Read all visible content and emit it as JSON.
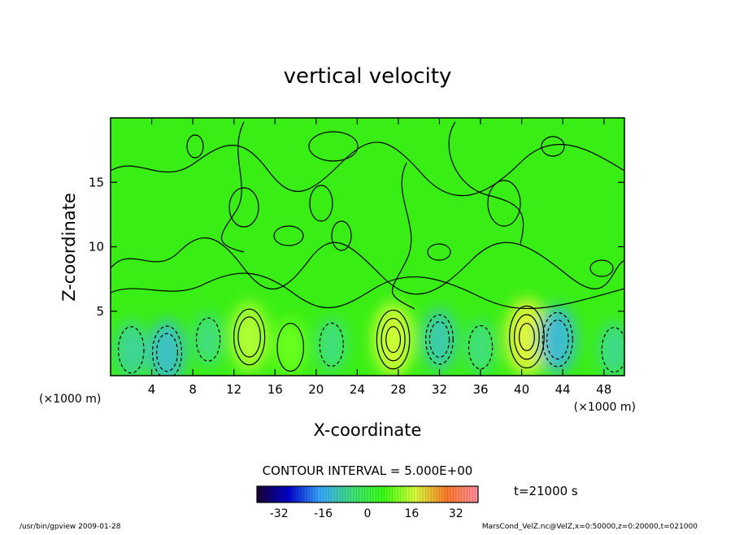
{
  "chart_data": {
    "type": "heatmap",
    "title": "vertical velocity",
    "xlabel": "X-coordinate",
    "ylabel": "Z-coordinate",
    "x_unit": "(×1000 m)",
    "y_unit": "(×1000 m)",
    "xlim": [
      0,
      50
    ],
    "ylim": [
      0,
      20
    ],
    "x_ticks": [
      4,
      8,
      12,
      16,
      20,
      24,
      28,
      32,
      36,
      40,
      44,
      48
    ],
    "y_ticks": [
      5,
      10,
      15
    ],
    "contour_interval_text": "CONTOUR INTERVAL = 5.000E+00",
    "time_text": "t=21000 s",
    "colorbar": {
      "range": [
        -40,
        40
      ],
      "ticks": [
        -32,
        -16,
        0,
        16,
        32
      ],
      "colors": [
        "#1a0033",
        "#0000cc",
        "#3aa8ff",
        "#3fe07a",
        "#39ff14",
        "#d8ff3a",
        "#ff7a2a",
        "#ff8fa0"
      ]
    },
    "field": {
      "background_color": "#39ee14",
      "features": [
        {
          "x": 2,
          "z": 2.0,
          "w": -8
        },
        {
          "x": 5.5,
          "z": 1.8,
          "w": -12
        },
        {
          "x": 9.5,
          "z": 2.8,
          "w": -6
        },
        {
          "x": 13.5,
          "z": 3.0,
          "w": 14
        },
        {
          "x": 17.5,
          "z": 2.2,
          "w": 9
        },
        {
          "x": 21.5,
          "z": 2.4,
          "w": -6
        },
        {
          "x": 27.5,
          "z": 2.8,
          "w": 16
        },
        {
          "x": 32.0,
          "z": 2.8,
          "w": -10
        },
        {
          "x": 36.0,
          "z": 2.2,
          "w": -6
        },
        {
          "x": 40.5,
          "z": 3.0,
          "w": 18
        },
        {
          "x": 43.5,
          "z": 2.8,
          "w": -13
        },
        {
          "x": 49.0,
          "z": 2.0,
          "w": -7
        }
      ]
    }
  },
  "footer": {
    "left_text": "/usr/bin/gpview  2009-01-28",
    "right_text": "MarsCond_VelZ.nc@VelZ,x=0:50000,z=0:20000,t=021000"
  }
}
